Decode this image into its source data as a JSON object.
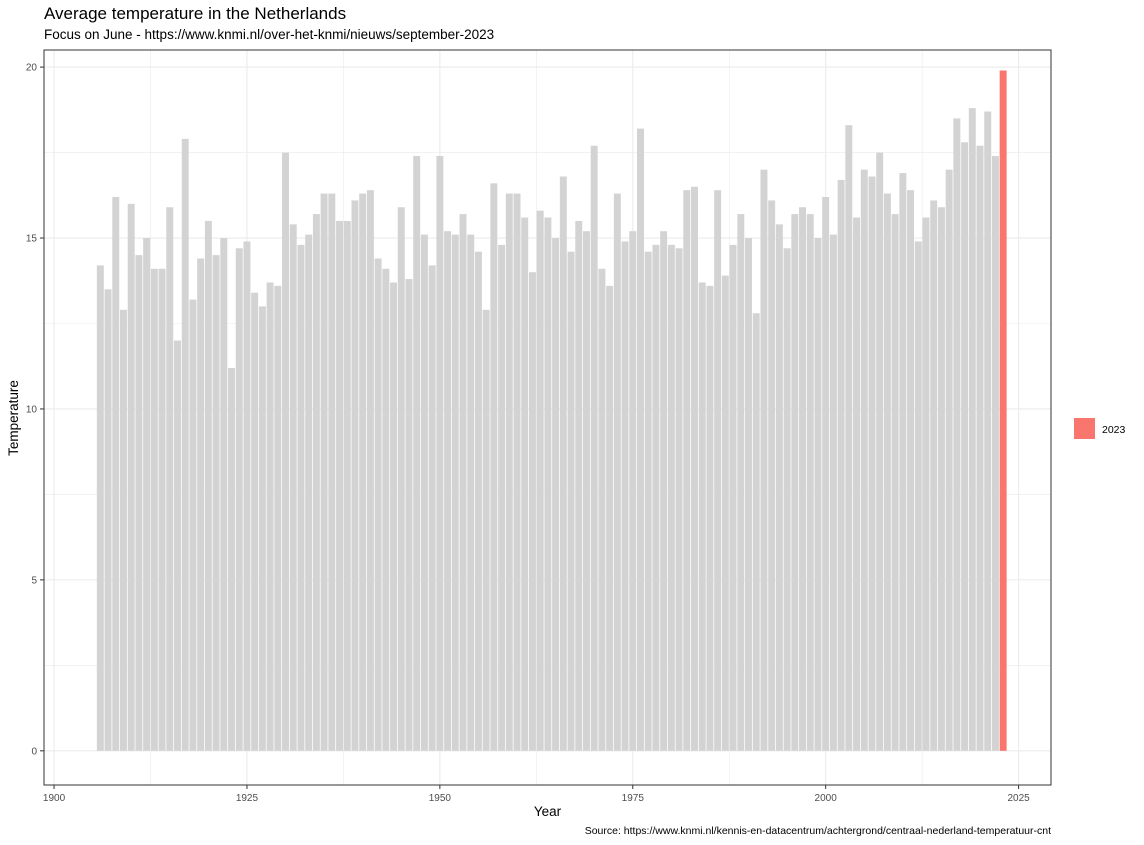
{
  "chart_data": {
    "type": "bar",
    "title": "Average temperature in the Netherlands",
    "subtitle": "Focus on June - https://www.knmi.nl/over-het-knmi/nieuws/september-2023",
    "caption": "Source: https://www.knmi.nl/kennis-en-datacentrum/achtergrond/centraal-nederland-temperatuur-cnt",
    "xlabel": "Year",
    "ylabel": "Temperature",
    "xlim": [
      1898.7,
      2029.2
    ],
    "ylim": [
      -1.0,
      20.5
    ],
    "x_ticks": [
      1900,
      1925,
      1950,
      1975,
      2000,
      2025
    ],
    "y_ticks": [
      0,
      5,
      10,
      15,
      20
    ],
    "grid": true,
    "legend_position": "right",
    "legend_entries": [
      "2023"
    ],
    "highlight_year": 2023,
    "colors": {
      "bar": "#d3d3d3",
      "highlight": "#f8766d",
      "grid": "#ebebeb",
      "panel_border": "#333333"
    },
    "years": [
      1906,
      1907,
      1908,
      1909,
      1910,
      1911,
      1912,
      1913,
      1914,
      1915,
      1916,
      1917,
      1918,
      1919,
      1920,
      1921,
      1922,
      1923,
      1924,
      1925,
      1926,
      1927,
      1928,
      1929,
      1930,
      1931,
      1932,
      1933,
      1934,
      1935,
      1936,
      1937,
      1938,
      1939,
      1940,
      1941,
      1942,
      1943,
      1944,
      1945,
      1946,
      1947,
      1948,
      1949,
      1950,
      1951,
      1952,
      1953,
      1954,
      1955,
      1956,
      1957,
      1958,
      1959,
      1960,
      1961,
      1962,
      1963,
      1964,
      1965,
      1966,
      1967,
      1968,
      1969,
      1970,
      1971,
      1972,
      1973,
      1974,
      1975,
      1976,
      1977,
      1978,
      1979,
      1980,
      1981,
      1982,
      1983,
      1984,
      1985,
      1986,
      1987,
      1988,
      1989,
      1990,
      1991,
      1992,
      1993,
      1994,
      1995,
      1996,
      1997,
      1998,
      1999,
      2000,
      2001,
      2002,
      2003,
      2004,
      2005,
      2006,
      2007,
      2008,
      2009,
      2010,
      2011,
      2012,
      2013,
      2014,
      2015,
      2016,
      2017,
      2018,
      2019,
      2020,
      2021,
      2022,
      2023
    ],
    "values": [
      14.2,
      13.5,
      16.2,
      12.9,
      16.0,
      14.5,
      15.0,
      14.1,
      14.1,
      15.9,
      12.0,
      17.9,
      13.2,
      14.4,
      15.5,
      14.5,
      15.0,
      11.2,
      14.7,
      14.9,
      13.4,
      13.0,
      13.7,
      13.6,
      17.5,
      15.4,
      14.8,
      15.1,
      15.7,
      16.3,
      16.3,
      15.5,
      15.5,
      16.1,
      16.3,
      16.4,
      14.4,
      14.1,
      13.7,
      15.9,
      13.8,
      17.4,
      15.1,
      14.2,
      17.4,
      15.2,
      15.1,
      15.7,
      15.1,
      14.6,
      12.9,
      16.6,
      14.8,
      16.3,
      16.3,
      15.6,
      14.0,
      15.8,
      15.6,
      15.0,
      16.8,
      14.6,
      15.5,
      15.2,
      17.7,
      14.1,
      13.6,
      16.3,
      14.9,
      15.2,
      18.2,
      14.6,
      14.8,
      15.2,
      14.8,
      14.7,
      16.4,
      16.5,
      13.7,
      13.6,
      16.4,
      13.9,
      14.8,
      15.7,
      15.0,
      12.8,
      17.0,
      16.1,
      15.4,
      14.7,
      15.7,
      15.9,
      15.7,
      15.0,
      16.2,
      15.1,
      16.7,
      18.3,
      15.6,
      17.0,
      16.8,
      17.5,
      16.3,
      15.7,
      16.9,
      16.4,
      14.9,
      15.6,
      16.1,
      15.9,
      17.0,
      18.5,
      17.8,
      18.8,
      17.7,
      18.7,
      17.4,
      19.9
    ]
  }
}
